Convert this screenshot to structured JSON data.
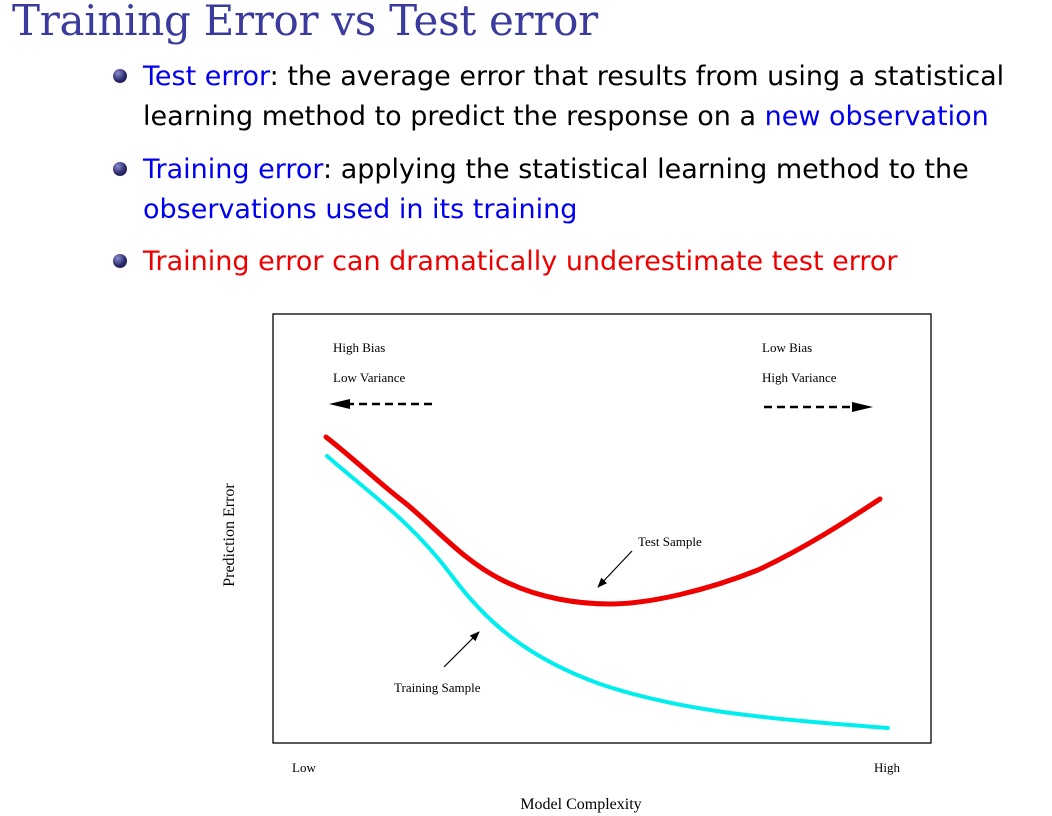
{
  "slide": {
    "title": "Training Error vs Test error",
    "title_color": "#3b3b9e",
    "blue_color": "#0000ee",
    "red_color": "#ee0000",
    "black_color": "#000000",
    "bullet_dot_color": "#2a2a6a"
  },
  "bullets": [
    {
      "color_key": "mixed",
      "lines": [
        [
          {
            "text": "Test error",
            "tone": "blue"
          },
          {
            "text": ": the average error that results from using a statistical",
            "tone": "black"
          }
        ],
        [
          {
            "text": "learning method to predict the response on a ",
            "tone": "black"
          },
          {
            "text": "new observation",
            "tone": "blue"
          }
        ]
      ]
    },
    {
      "color_key": "mixed",
      "lines": [
        [
          {
            "text": "Training error",
            "tone": "blue"
          },
          {
            "text": ": applying the statistical learning method to the",
            "tone": "black"
          }
        ],
        [
          {
            "text": "observations used in its training",
            "tone": "blue"
          }
        ]
      ]
    },
    {
      "color_key": "red",
      "lines": [
        [
          {
            "text": "Training error can dramatically underestimate test error",
            "tone": "red"
          }
        ]
      ]
    }
  ],
  "diagram": {
    "labels": {
      "high_bias": "High Bias",
      "low_variance": "Low Variance",
      "low_bias": "Low Bias",
      "high_variance": "High Variance",
      "test_sample": "Test Sample",
      "training_sample": "Training Sample",
      "x_low": "Low",
      "x_high": "High",
      "x_axis_title": "Model Complexity",
      "y_axis_title": "Prediction Error"
    },
    "curves": {
      "test": {
        "color": "#ee0000"
      },
      "training": {
        "color": "#00eeee"
      }
    }
  }
}
